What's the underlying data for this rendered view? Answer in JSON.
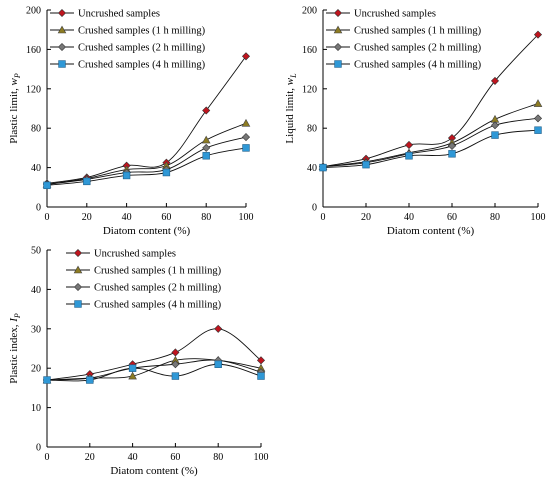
{
  "chart_data": [
    {
      "type": "line",
      "xlabel": "Diatom content (%)",
      "ylabel": "Plastic limit, w",
      "ylabel_sub": "P",
      "x": [
        0,
        20,
        40,
        60,
        80,
        100
      ],
      "xticks": [
        0,
        20,
        40,
        60,
        80,
        100
      ],
      "yticks": [
        0,
        40,
        80,
        120,
        160,
        200
      ],
      "xlim": [
        0,
        100
      ],
      "ylim": [
        0,
        200
      ],
      "legend_position": "top-left",
      "series": [
        {
          "name": "Uncrushed samples",
          "marker": "diamond",
          "color": "#c0141e",
          "values": [
            24,
            30,
            42,
            45,
            98,
            153
          ]
        },
        {
          "name": "Crushed samples (1 h milling)",
          "marker": "triangle",
          "color": "#8c7b22",
          "values": [
            23,
            29,
            38,
            42,
            68,
            85
          ]
        },
        {
          "name": "Crushed samples (2 h milling)",
          "marker": "diamond",
          "color": "#777777",
          "values": [
            23,
            28,
            35,
            38,
            60,
            71
          ]
        },
        {
          "name": "Crushed samples (4 h milling)",
          "marker": "square",
          "color": "#2f98d6",
          "values": [
            22,
            26,
            32,
            35,
            52,
            60
          ]
        }
      ]
    },
    {
      "type": "line",
      "xlabel": "Diatom content (%)",
      "ylabel": "Liquid limit, w",
      "ylabel_sub": "L",
      "x": [
        0,
        20,
        40,
        60,
        80,
        100
      ],
      "xticks": [
        0,
        20,
        40,
        60,
        80,
        100
      ],
      "yticks": [
        0,
        40,
        80,
        120,
        160,
        200
      ],
      "xlim": [
        0,
        100
      ],
      "ylim": [
        0,
        200
      ],
      "legend_position": "top-left",
      "series": [
        {
          "name": "Uncrushed samples",
          "marker": "diamond",
          "color": "#c0141e",
          "values": [
            41,
            49,
            63,
            70,
            128,
            175
          ]
        },
        {
          "name": "Crushed samples (1 h milling)",
          "marker": "triangle",
          "color": "#8c7b22",
          "values": [
            41,
            46,
            55,
            65,
            89,
            105
          ]
        },
        {
          "name": "Crushed samples (2 h milling)",
          "marker": "diamond",
          "color": "#777777",
          "values": [
            41,
            45,
            54,
            62,
            83,
            90
          ]
        },
        {
          "name": "Crushed samples (4 h milling)",
          "marker": "square",
          "color": "#2f98d6",
          "values": [
            40,
            43,
            52,
            54,
            73,
            78
          ]
        }
      ]
    },
    {
      "type": "line",
      "xlabel": "Diatom content (%)",
      "ylabel": "Plastic index, I",
      "ylabel_sub": "P",
      "x": [
        0,
        20,
        40,
        60,
        80,
        100
      ],
      "xticks": [
        0,
        20,
        40,
        60,
        80,
        100
      ],
      "yticks": [
        0,
        10,
        20,
        30,
        40,
        50
      ],
      "xlim": [
        0,
        100
      ],
      "ylim": [
        0,
        50
      ],
      "legend_position": "top-left",
      "series": [
        {
          "name": "Uncrushed samples",
          "marker": "diamond",
          "color": "#c0141e",
          "values": [
            17,
            18.5,
            21,
            24,
            30,
            22
          ]
        },
        {
          "name": "Crushed samples (1 h milling)",
          "marker": "triangle",
          "color": "#8c7b22",
          "values": [
            17,
            17.5,
            18,
            22,
            22,
            20
          ]
        },
        {
          "name": "Crushed samples (2 h milling)",
          "marker": "diamond",
          "color": "#777777",
          "values": [
            17,
            17.5,
            20,
            21,
            22,
            19
          ]
        },
        {
          "name": "Crushed samples (4 h milling)",
          "marker": "square",
          "color": "#2f98d6",
          "values": [
            17,
            17,
            20,
            18,
            21,
            18
          ]
        }
      ]
    }
  ]
}
